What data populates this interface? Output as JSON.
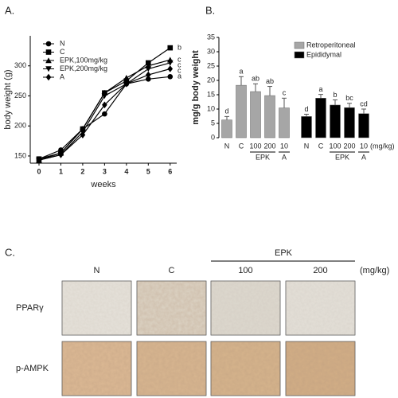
{
  "chart_data": [
    {
      "type": "line",
      "label": "A.",
      "xlabel": "weeks",
      "ylabel": "body weight (g)",
      "x": [
        0,
        1,
        2,
        3,
        4,
        5,
        6
      ],
      "xlim": [
        -0.4,
        6.3
      ],
      "xticks": [
        0,
        1,
        2,
        3,
        4,
        5,
        6
      ],
      "ylim": [
        138,
        350
      ],
      "yticks": [
        150,
        200,
        250,
        300
      ],
      "series": [
        {
          "name": "N",
          "marker": "circle",
          "color": "#000000",
          "values": [
            145,
            160,
            195,
            220,
            270,
            278,
            282
          ],
          "end_label": "a"
        },
        {
          "name": "C",
          "marker": "square",
          "color": "#000000",
          "values": [
            145,
            155,
            195,
            255,
            275,
            305,
            330
          ],
          "end_label": "b"
        },
        {
          "name": "EPK,100mg/kg",
          "marker": "triangle-up",
          "color": "#000000",
          "values": [
            143,
            155,
            195,
            255,
            280,
            300,
            310
          ],
          "end_label": "c"
        },
        {
          "name": "EPK,200mg/kg",
          "marker": "triangle-down",
          "color": "#000000",
          "values": [
            143,
            152,
            190,
            250,
            270,
            295,
            305
          ],
          "end_label": "c"
        },
        {
          "name": "A",
          "marker": "diamond",
          "color": "#000000",
          "values": [
            143,
            152,
            185,
            235,
            270,
            285,
            295
          ],
          "end_label": "c"
        }
      ]
    },
    {
      "type": "bar",
      "label": "B.",
      "ylabel": "mg/g body weight",
      "categories": [
        "N",
        "C",
        "100",
        "200",
        "10"
      ],
      "group_labels": [
        "EPK",
        "A"
      ],
      "unit": "(mg/kg)",
      "ylim": [
        0,
        35
      ],
      "yticks": [
        0,
        5,
        10,
        15,
        20,
        25,
        30,
        35
      ],
      "series": [
        {
          "name": "Retroperitoneal",
          "color": "#a6a6a6",
          "values": [
            6.2,
            18.3,
            16.1,
            14.7,
            10.4
          ],
          "errors": [
            1.2,
            3.0,
            2.7,
            3.2,
            3.4
          ],
          "letters": [
            "d",
            "a",
            "ab",
            "ab",
            "c"
          ]
        },
        {
          "name": "Epididymal",
          "color": "#000000",
          "values": [
            7.4,
            13.8,
            11.4,
            10.5,
            8.4
          ],
          "errors": [
            0.8,
            1.3,
            1.8,
            1.5,
            1.6
          ],
          "letters": [
            "d",
            "a",
            "b",
            "bc",
            "cd"
          ]
        }
      ]
    }
  ],
  "figure_c": {
    "label": "C.",
    "group": "EPK",
    "columns": [
      "N",
      "C",
      "100",
      "200"
    ],
    "unit": "(mg/kg)",
    "rows": [
      "PPARγ",
      "p-AMPK"
    ]
  }
}
